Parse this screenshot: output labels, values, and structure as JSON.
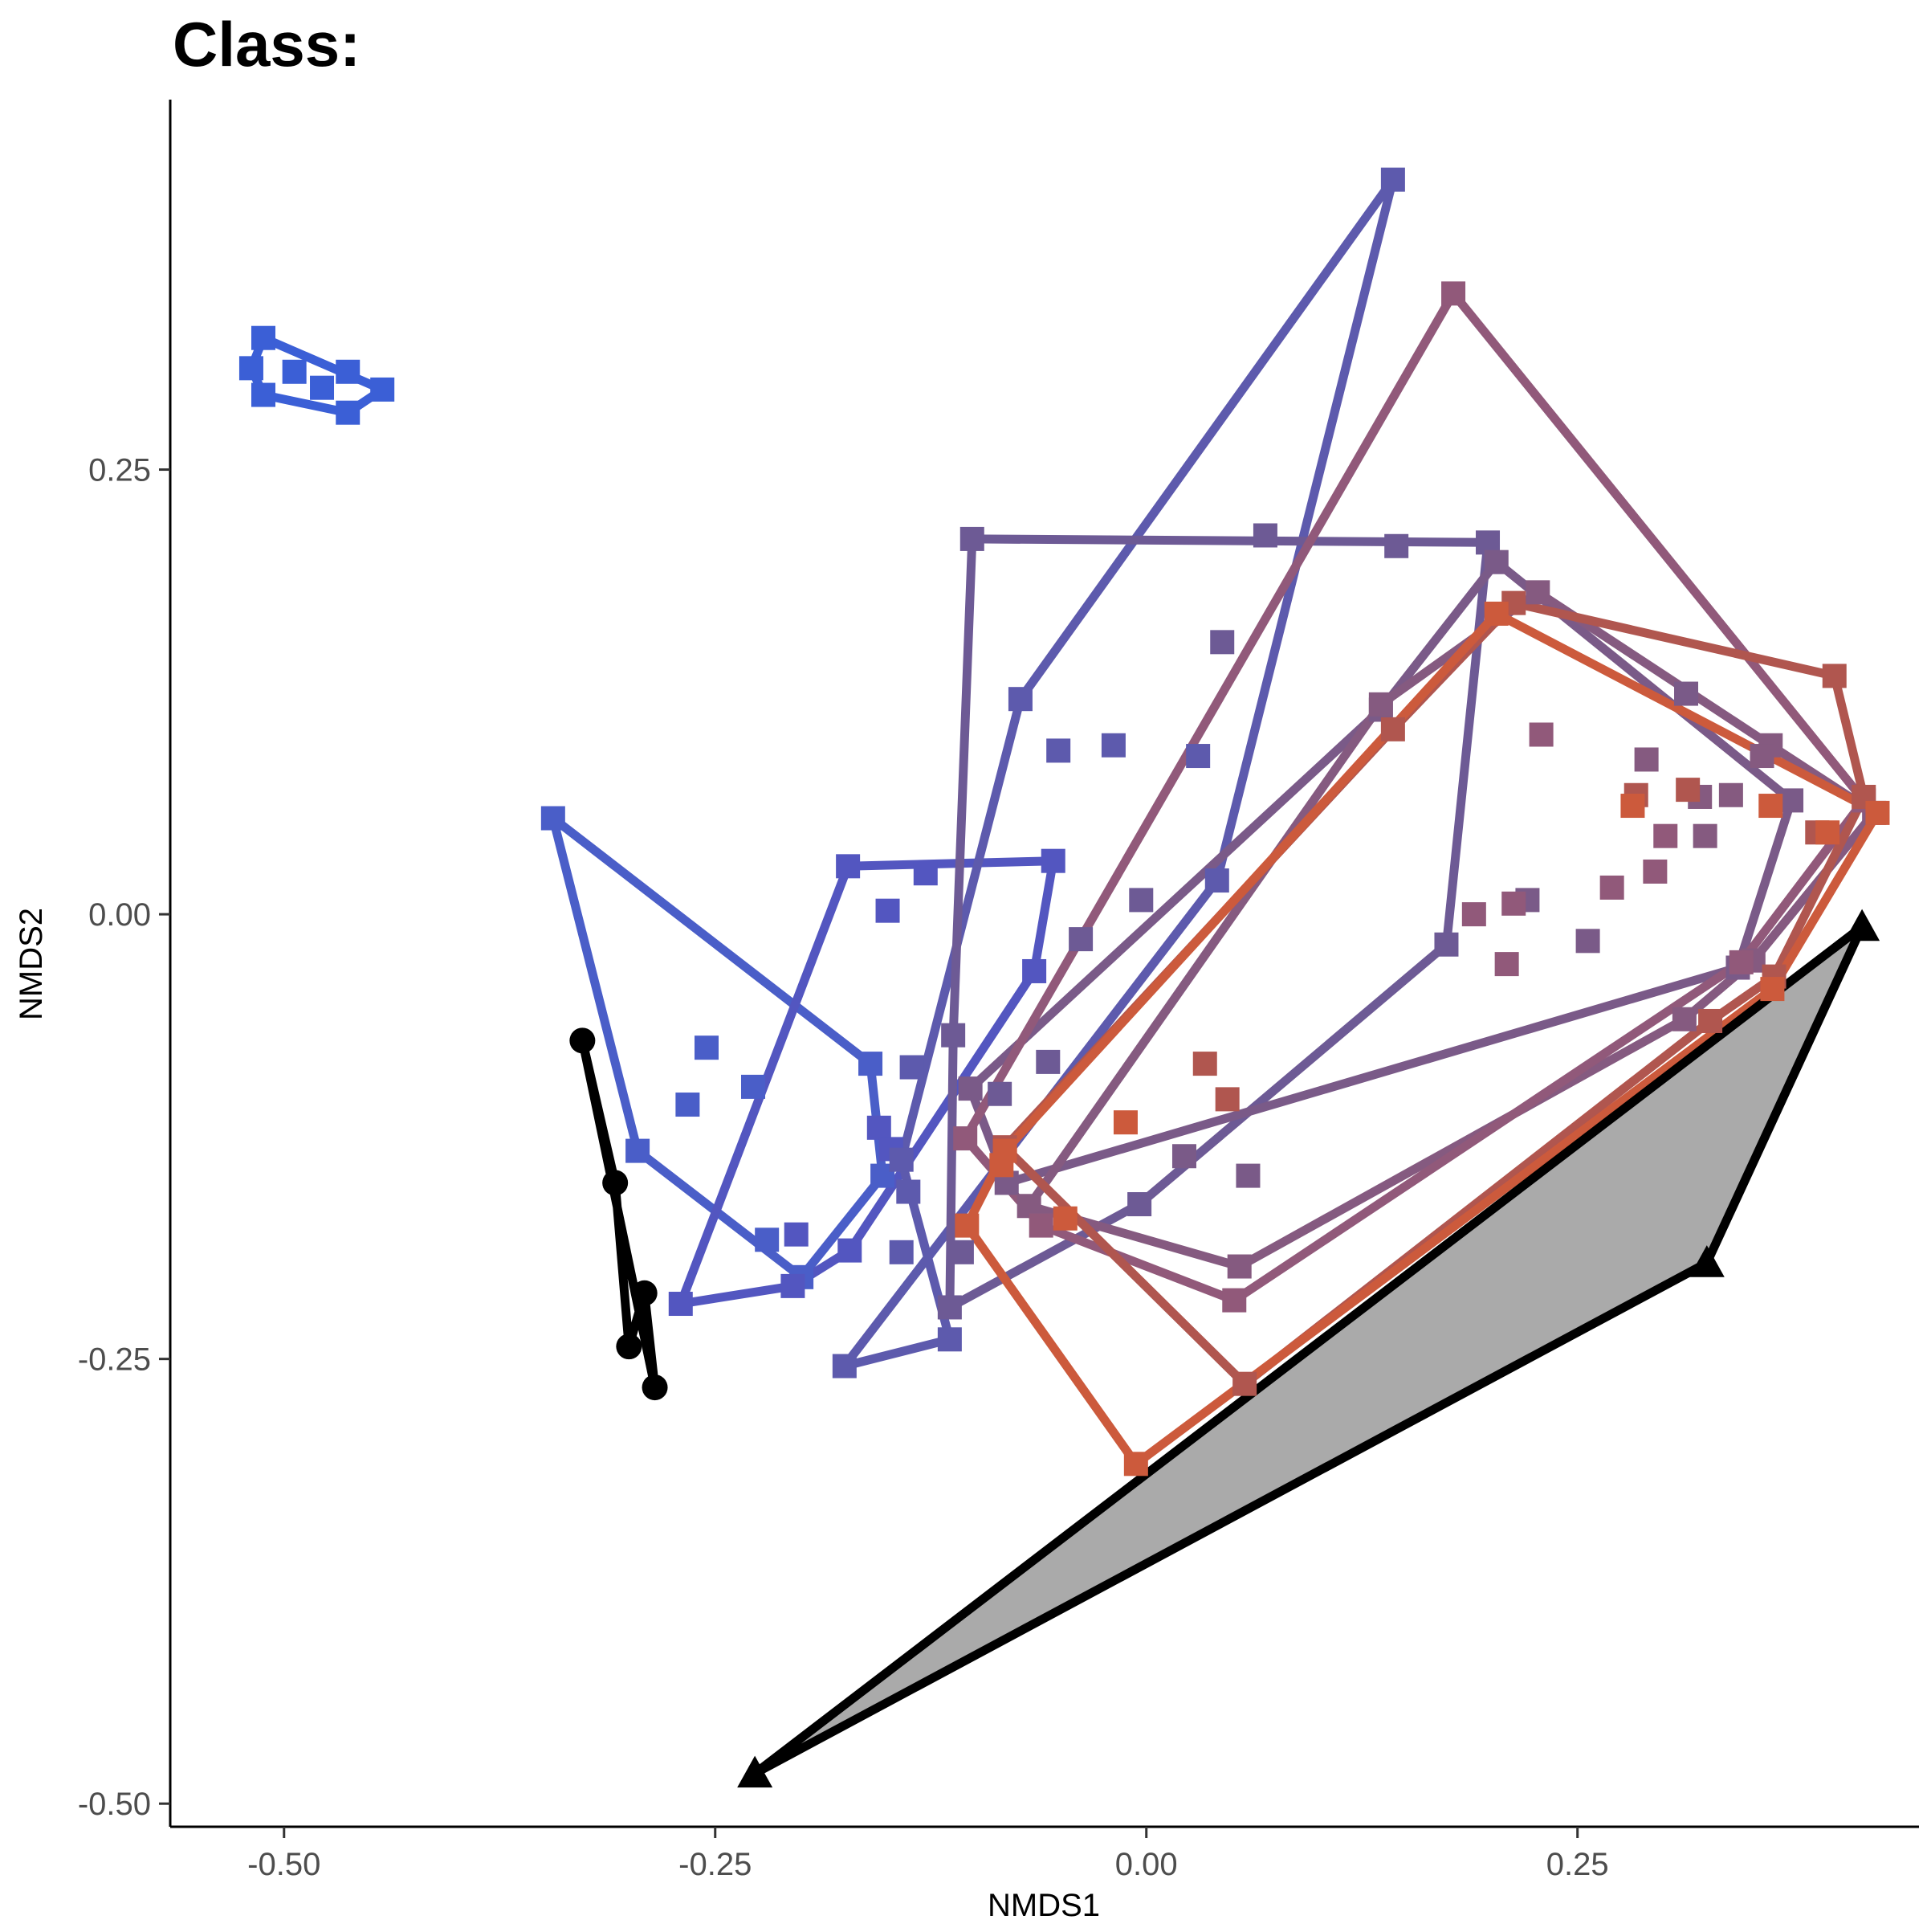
{
  "chart_data": {
    "type": "scatter",
    "title": "Class:",
    "xlabel": "NMDS1",
    "ylabel": "NMDS2",
    "xlim": [
      -0.566,
      0.448
    ],
    "ylim": [
      -0.513,
      0.458
    ],
    "xticks": [
      -0.5,
      -0.25,
      0.0,
      0.25
    ],
    "xtick_labels": [
      "-0.50",
      "-0.25",
      "0.00",
      "0.25"
    ],
    "yticks": [
      -0.5,
      -0.25,
      0.0,
      0.25
    ],
    "ytick_labels": [
      "-0.50",
      "-0.25",
      "0.00",
      "0.25"
    ],
    "grid": false,
    "legend": "none",
    "groups": [
      {
        "color": "#3b5fd6",
        "marker": "square",
        "fill": "none",
        "hull": [
          [
            -0.512,
            0.324
          ],
          [
            -0.443,
            0.295
          ],
          [
            -0.463,
            0.282
          ],
          [
            -0.512,
            0.292
          ],
          [
            -0.519,
            0.307
          ]
        ],
        "points": [
          [
            -0.512,
            0.324
          ],
          [
            -0.494,
            0.305
          ],
          [
            -0.478,
            0.296
          ],
          [
            -0.463,
            0.305
          ],
          [
            -0.443,
            0.295
          ],
          [
            -0.463,
            0.282
          ],
          [
            -0.512,
            0.292
          ],
          [
            -0.519,
            0.307
          ]
        ]
      },
      {
        "color": "#4a5ec8",
        "marker": "square",
        "fill": "none",
        "hull": [
          [
            -0.344,
            0.054
          ],
          [
            -0.16,
            -0.084
          ],
          [
            -0.153,
            -0.147
          ],
          [
            -0.2,
            -0.204
          ],
          [
            -0.295,
            -0.133
          ]
        ],
        "points": [
          [
            -0.344,
            0.054
          ],
          [
            -0.16,
            -0.084
          ],
          [
            -0.153,
            -0.147
          ],
          [
            -0.2,
            -0.204
          ],
          [
            -0.295,
            -0.133
          ],
          [
            -0.255,
            -0.075
          ],
          [
            -0.228,
            -0.097
          ],
          [
            -0.266,
            -0.107
          ],
          [
            -0.22,
            -0.183
          ]
        ]
      },
      {
        "color": "#5356c0",
        "marker": "square",
        "fill": "none",
        "hull": [
          [
            -0.173,
            0.027
          ],
          [
            -0.054,
            0.03
          ],
          [
            -0.065,
            -0.032
          ],
          [
            -0.172,
            -0.189
          ],
          [
            -0.205,
            -0.209
          ],
          [
            -0.27,
            -0.219
          ]
        ],
        "points": [
          [
            -0.173,
            0.027
          ],
          [
            -0.054,
            0.03
          ],
          [
            -0.065,
            -0.032
          ],
          [
            -0.172,
            -0.189
          ],
          [
            -0.205,
            -0.209
          ],
          [
            -0.27,
            -0.219
          ],
          [
            -0.15,
            0.002
          ],
          [
            -0.128,
            0.023
          ],
          [
            -0.155,
            -0.12
          ],
          [
            -0.148,
            -0.132
          ],
          [
            -0.203,
            -0.18
          ]
        ]
      },
      {
        "color": "#5d5aad",
        "marker": "square",
        "fill": "none",
        "hull": [
          [
            0.143,
            0.413
          ],
          [
            0.041,
            0.019
          ],
          [
            -0.175,
            -0.254
          ],
          [
            -0.114,
            -0.239
          ],
          [
            -0.142,
            -0.138
          ],
          [
            -0.073,
            0.121
          ]
        ],
        "points": [
          [
            0.143,
            0.413
          ],
          [
            0.041,
            0.019
          ],
          [
            -0.175,
            -0.254
          ],
          [
            -0.114,
            -0.239
          ],
          [
            -0.142,
            -0.138
          ],
          [
            -0.073,
            0.121
          ],
          [
            -0.051,
            0.092
          ],
          [
            -0.019,
            0.095
          ],
          [
            0.03,
            0.089
          ],
          [
            -0.136,
            -0.086
          ],
          [
            -0.138,
            -0.156
          ],
          [
            -0.142,
            -0.19
          ]
        ]
      },
      {
        "color": "#6d5a95",
        "marker": "square",
        "fill": "none",
        "hull": [
          [
            -0.101,
            0.211
          ],
          [
            0.198,
            0.209
          ],
          [
            0.174,
            -0.017
          ],
          [
            -0.004,
            -0.163
          ],
          [
            -0.114,
            -0.221
          ],
          [
            -0.112,
            -0.068
          ]
        ],
        "points": [
          [
            -0.101,
            0.211
          ],
          [
            0.198,
            0.209
          ],
          [
            0.174,
            -0.017
          ],
          [
            -0.004,
            -0.163
          ],
          [
            -0.114,
            -0.221
          ],
          [
            -0.112,
            -0.068
          ],
          [
            0.069,
            0.213
          ],
          [
            0.145,
            0.207
          ],
          [
            0.044,
            0.153
          ],
          [
            -0.003,
            0.008
          ],
          [
            -0.038,
            -0.014
          ],
          [
            -0.057,
            -0.083
          ],
          [
            -0.085,
            -0.101
          ],
          [
            -0.107,
            -0.19
          ]
        ]
      },
      {
        "color": "#7a5a88",
        "marker": "square",
        "fill": "none",
        "hull": [
          [
            0.203,
            0.198
          ],
          [
            0.374,
            0.064
          ],
          [
            0.343,
            -0.03
          ],
          [
            -0.081,
            -0.151
          ],
          [
            -0.102,
            -0.098
          ],
          [
            0.136,
            0.115
          ]
        ],
        "points": [
          [
            0.203,
            0.198
          ],
          [
            0.374,
            0.064
          ],
          [
            0.343,
            -0.03
          ],
          [
            -0.081,
            -0.151
          ],
          [
            -0.102,
            -0.098
          ],
          [
            0.136,
            0.115
          ],
          [
            0.221,
            0.008
          ],
          [
            0.256,
            -0.015
          ],
          [
            0.313,
            0.124
          ],
          [
            0.022,
            -0.136
          ],
          [
            0.059,
            -0.147
          ]
        ]
      },
      {
        "color": "#855a80",
        "marker": "square",
        "fill": "none",
        "hull": [
          [
            0.227,
            0.181
          ],
          [
            0.362,
            0.095
          ],
          [
            0.422,
            0.057
          ],
          [
            0.352,
            -0.026
          ],
          [
            0.312,
            -0.059
          ],
          [
            0.054,
            -0.198
          ],
          [
            -0.068,
            -0.164
          ],
          [
            0.136,
            0.118
          ]
        ],
        "points": [
          [
            0.227,
            0.181
          ],
          [
            0.362,
            0.095
          ],
          [
            0.422,
            0.057
          ],
          [
            0.352,
            -0.026
          ],
          [
            0.312,
            -0.059
          ],
          [
            0.054,
            -0.198
          ],
          [
            -0.068,
            -0.164
          ],
          [
            0.136,
            0.118
          ],
          [
            0.29,
            0.087
          ],
          [
            0.321,
            0.066
          ],
          [
            0.324,
            0.044
          ],
          [
            0.357,
            0.089
          ],
          [
            0.339,
            0.067
          ]
        ]
      },
      {
        "color": "#91597a",
        "marker": "square",
        "fill": "none",
        "hull": [
          [
            0.178,
            0.349
          ],
          [
            0.416,
            0.064
          ],
          [
            0.345,
            -0.027
          ],
          [
            0.051,
            -0.217
          ],
          [
            -0.061,
            -0.175
          ],
          [
            -0.105,
            -0.126
          ]
        ],
        "points": [
          [
            0.178,
            0.349
          ],
          [
            0.416,
            0.064
          ],
          [
            0.345,
            -0.027
          ],
          [
            0.051,
            -0.217
          ],
          [
            -0.061,
            -0.175
          ],
          [
            -0.105,
            -0.126
          ],
          [
            0.229,
            0.101
          ],
          [
            0.301,
            0.044
          ],
          [
            0.295,
            0.024
          ],
          [
            0.27,
            0.015
          ],
          [
            0.213,
            0.006
          ],
          [
            0.209,
            -0.028
          ],
          [
            0.19,
            0.0
          ]
        ]
      },
      {
        "color": "#b0564f",
        "marker": "square",
        "fill": "none",
        "hull": [
          [
            0.213,
            0.175
          ],
          [
            0.399,
            0.134
          ],
          [
            0.416,
            0.066
          ],
          [
            0.364,
            -0.035
          ],
          [
            0.327,
            -0.06
          ],
          [
            0.057,
            -0.264
          ],
          [
            -0.082,
            -0.131
          ],
          [
            0.143,
            0.104
          ]
        ],
        "points": [
          [
            0.213,
            0.175
          ],
          [
            0.399,
            0.134
          ],
          [
            0.416,
            0.066
          ],
          [
            0.364,
            -0.035
          ],
          [
            0.327,
            -0.06
          ],
          [
            0.057,
            -0.264
          ],
          [
            -0.082,
            -0.131
          ],
          [
            0.143,
            0.104
          ],
          [
            0.284,
            0.067
          ],
          [
            0.314,
            0.07
          ],
          [
            0.389,
            0.046
          ],
          [
            0.034,
            -0.084
          ],
          [
            0.047,
            -0.104
          ]
        ]
      },
      {
        "color": "#cc5a3c",
        "marker": "square",
        "fill": "none",
        "hull": [
          [
            0.203,
            0.169
          ],
          [
            0.424,
            0.057
          ],
          [
            0.363,
            -0.042
          ],
          [
            -0.006,
            -0.309
          ],
          [
            -0.104,
            -0.175
          ],
          [
            -0.082,
            -0.133
          ]
        ],
        "points": [
          [
            0.203,
            0.169
          ],
          [
            0.424,
            0.057
          ],
          [
            0.363,
            -0.042
          ],
          [
            -0.006,
            -0.309
          ],
          [
            -0.104,
            -0.175
          ],
          [
            -0.082,
            -0.133
          ],
          [
            0.282,
            0.061
          ],
          [
            0.362,
            0.061
          ],
          [
            0.395,
            0.046
          ],
          [
            -0.012,
            -0.117
          ],
          [
            -0.047,
            -0.171
          ],
          [
            -0.084,
            -0.141
          ]
        ]
      },
      {
        "color": "#000000",
        "marker": "circle",
        "fill": "none",
        "hull": [
          [
            -0.327,
            -0.071
          ],
          [
            -0.285,
            -0.266
          ],
          [
            -0.291,
            -0.213
          ],
          [
            -0.3,
            -0.243
          ],
          [
            -0.308,
            -0.151
          ]
        ],
        "points": [
          [
            -0.327,
            -0.071
          ],
          [
            -0.285,
            -0.266
          ],
          [
            -0.291,
            -0.213
          ],
          [
            -0.3,
            -0.243
          ],
          [
            -0.308,
            -0.151
          ]
        ]
      },
      {
        "color": "#000000",
        "marker": "triangle",
        "fill": "#aaaaaa",
        "hull": [
          [
            -0.227,
            -0.483
          ],
          [
            0.415,
            -0.007
          ],
          [
            0.325,
            -0.196
          ]
        ],
        "points": [
          [
            -0.227,
            -0.483
          ],
          [
            0.415,
            -0.007
          ],
          [
            0.325,
            -0.196
          ]
        ]
      }
    ]
  }
}
